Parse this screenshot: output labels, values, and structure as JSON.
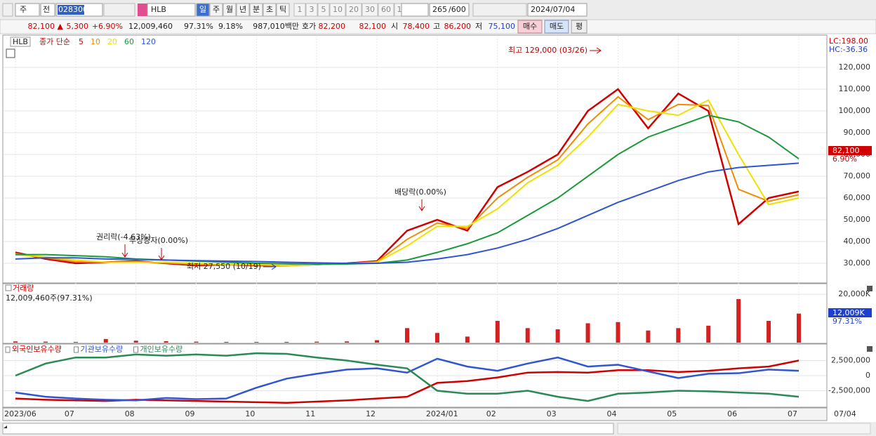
{
  "toolbar": {
    "market": "주",
    "view": "전",
    "code": "028300",
    "name": "HLB",
    "periods": [
      "일",
      "주",
      "월",
      "년",
      "분",
      "초",
      "틱"
    ],
    "intervals": [
      "1",
      "3",
      "5",
      "10",
      "20",
      "30",
      "60",
      "120"
    ],
    "count": "265",
    "max": "/600",
    "date": "2024/07/04"
  },
  "quote": {
    "price": "82,100 ▲",
    "change": "5,300",
    "change_pct": "+6.90%",
    "volume": "12,009,460",
    "volume_ratio": "97.31%",
    "turnover": "9.18%",
    "amount": "987,010백만",
    "ask_label": "호가",
    "ask": "82,200",
    "bid": "82,100",
    "open_label": "시",
    "open": "78,400",
    "high_label": "고",
    "high": "86,200",
    "low_label": "저",
    "low": "75,100",
    "buy": "매수",
    "sell": "매도",
    "avg": "평"
  },
  "price_chart": {
    "type": "line",
    "symbol": "HLB",
    "legend_title": "종가 단순",
    "series": [
      {
        "name": "5",
        "color": "#d00000",
        "values": [
          35000,
          32000,
          30000,
          30500,
          31000,
          30000,
          29000,
          29500,
          29000,
          29000,
          29500,
          30000,
          31000,
          45000,
          50000,
          45000,
          65000,
          72000,
          80000,
          100000,
          110000,
          92000,
          108000,
          100000,
          48000,
          60000,
          63000
        ]
      },
      {
        "name": "10",
        "color": "#f08c00",
        "values": [
          34500,
          32500,
          30700,
          30500,
          30700,
          30200,
          29500,
          29500,
          29200,
          29000,
          29500,
          29900,
          30700,
          41000,
          48500,
          46000,
          60000,
          69500,
          77500,
          94000,
          106500,
          96000,
          103000,
          102500,
          64000,
          58500,
          61500
        ]
      },
      {
        "name": "20",
        "color": "#f0e000",
        "values": [
          34000,
          33000,
          31500,
          30500,
          30500,
          30500,
          30000,
          29500,
          29500,
          29000,
          29500,
          29800,
          30500,
          38000,
          47000,
          47000,
          55000,
          67000,
          75000,
          88000,
          103000,
          100000,
          98000,
          105000,
          80000,
          57000,
          60000
        ]
      },
      {
        "name": "60",
        "color": "#1a9a3a",
        "values": [
          34000,
          34000,
          33500,
          33000,
          32000,
          31500,
          31000,
          30500,
          30000,
          29800,
          29600,
          29700,
          30000,
          31500,
          35000,
          39000,
          44000,
          52000,
          60000,
          70000,
          80000,
          88000,
          93000,
          98000,
          95000,
          88000,
          78000
        ]
      },
      {
        "name": "120",
        "color": "#2f55d4",
        "values": [
          32000,
          32500,
          32500,
          32000,
          31800,
          31500,
          31200,
          31000,
          30800,
          30500,
          30200,
          30000,
          30000,
          30500,
          32000,
          34000,
          37000,
          41000,
          46000,
          52000,
          58000,
          63000,
          68000,
          72000,
          74000,
          75000,
          76000
        ]
      }
    ],
    "ylim": [
      21300,
      134200
    ],
    "yticks": [
      {
        "value": 30000,
        "label": "30,000"
      },
      {
        "value": 40000,
        "label": "40,000"
      },
      {
        "value": 50000,
        "label": "50,000"
      },
      {
        "value": 60000,
        "label": "60,000"
      },
      {
        "value": 70000,
        "label": "70,000"
      },
      {
        "value": 80000,
        "label": "80,000"
      },
      {
        "value": 90000,
        "label": "90,000"
      },
      {
        "value": 100000,
        "label": "100,000"
      },
      {
        "value": 110000,
        "label": "110,000"
      },
      {
        "value": 120000,
        "label": "120,000"
      }
    ],
    "annotations": {
      "high": "최고 129,000 (03/26)",
      "low": "최저 27,550 (10/19)",
      "dividend": "배당락(0.00%)",
      "rights": "권리락(-4.63%)",
      "bonus": "무상증자(0.00%)"
    },
    "lc": "LC:198.00",
    "hc": "HC:-36.36",
    "last_price": "82,100",
    "last_change": "6.90%"
  },
  "volume_chart": {
    "type": "bar",
    "title": "거래량",
    "summary": "12,009,460주(97.31%)",
    "color": "#d42020",
    "values": [
      500,
      400,
      300,
      1500,
      800,
      600,
      400,
      300,
      300,
      300,
      400,
      500,
      1000,
      6000,
      4000,
      2500,
      9000,
      6000,
      5500,
      8000,
      8500,
      5000,
      6000,
      7000,
      18000,
      9000,
      12000
    ],
    "ylim": [
      0,
      23800
    ],
    "yticks": [
      {
        "value": 20000,
        "label": "20,000K"
      }
    ],
    "last_volume": "12,009K",
    "last_ratio": "97.31%"
  },
  "holdings_chart": {
    "type": "line",
    "series": [
      {
        "name": "외국인보유수량",
        "color": "#d00000",
        "values": [
          -3800000,
          -4000000,
          -4100000,
          -4200000,
          -4000000,
          -4100000,
          -4200000,
          -4300000,
          -4400000,
          -4500000,
          -4300000,
          -4100000,
          -3800000,
          -3500000,
          -1200000,
          -900000,
          -300000,
          500000,
          600000,
          500000,
          900000,
          900000,
          600000,
          800000,
          1200000,
          1500000,
          2500000
        ]
      },
      {
        "name": "기관보유수량",
        "color": "#2f55d4",
        "values": [
          -2800000,
          -3500000,
          -3800000,
          -4000000,
          -4100000,
          -3700000,
          -3900000,
          -3800000,
          -2000000,
          -500000,
          300000,
          1000000,
          1200000,
          500000,
          2800000,
          1500000,
          800000,
          2000000,
          3000000,
          1500000,
          1800000,
          700000,
          -400000,
          300000,
          400000,
          1000000,
          800000
        ]
      },
      {
        "name": "개인보유수량",
        "color": "#2a8a55",
        "values": [
          0,
          2000000,
          3000000,
          3000000,
          3500000,
          3300000,
          3500000,
          3300000,
          3700000,
          3600000,
          3000000,
          2500000,
          1800000,
          1200000,
          -2500000,
          -3000000,
          -3000000,
          -2500000,
          -3500000,
          -4200000,
          -3000000,
          -2800000,
          -2500000,
          -2600000,
          -2800000,
          -3000000,
          -3500000
        ]
      }
    ],
    "ylim": [
      -5000000,
      5000000
    ],
    "yticks": [
      {
        "value": 2500000,
        "label": "2,500,000"
      },
      0,
      {
        "value": -2500000,
        "label": "-2,500,000"
      }
    ]
  },
  "x_axis": {
    "labels": [
      "2023/06",
      "07",
      "08",
      "09",
      "10",
      "11",
      "12",
      "2024/01",
      "02",
      "03",
      "04",
      "05",
      "06",
      "07"
    ],
    "end_label": "07/04"
  }
}
